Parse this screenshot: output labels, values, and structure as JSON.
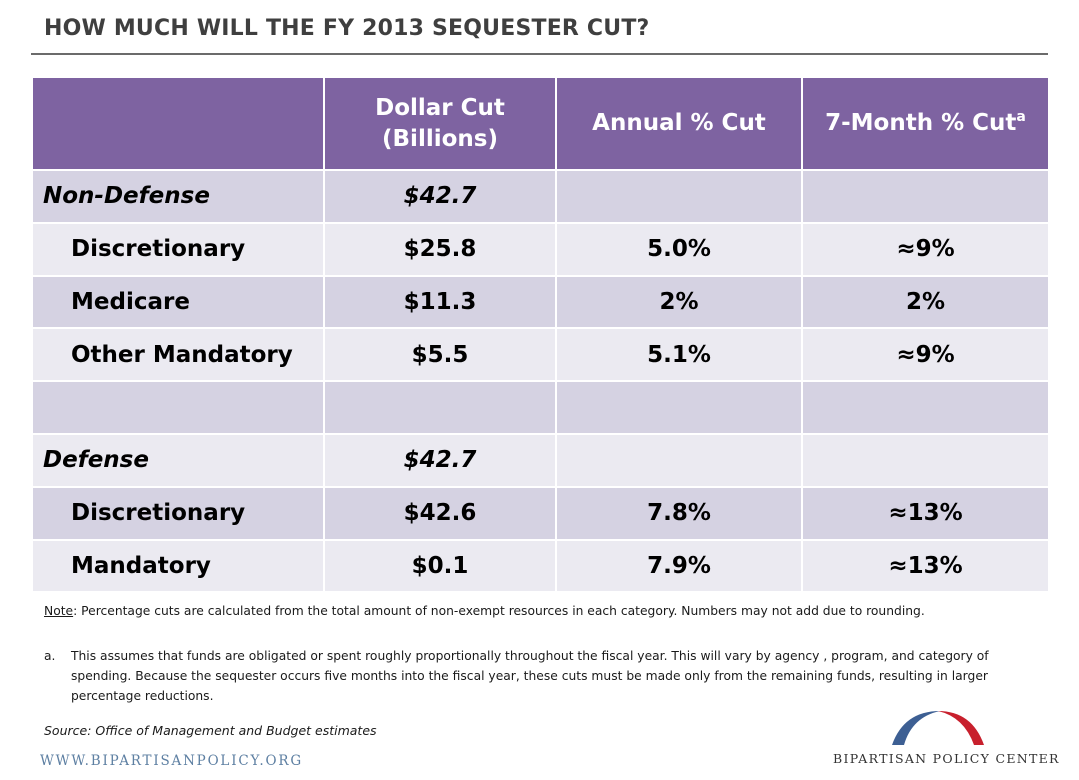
{
  "title": "HOW MUCH WILL THE FY 2013 SEQUESTER CUT?",
  "table": {
    "headers": {
      "col1": "",
      "col2_line1": "Dollar Cut",
      "col2_line2": "(Billions)",
      "col3": "Annual % Cut",
      "col4": "7-Month % Cut",
      "col4_sup": "a"
    },
    "rows": [
      {
        "label": "Non-Defense",
        "dollar": "$42.7",
        "annual": "",
        "seven": ""
      },
      {
        "label": "Discretionary",
        "dollar": "$25.8",
        "annual": "5.0%",
        "seven": "≈9%"
      },
      {
        "label": "Medicare",
        "dollar": "$11.3",
        "annual": "2%",
        "seven": "2%"
      },
      {
        "label": "Other Mandatory",
        "dollar": "$5.5",
        "annual": "5.1%",
        "seven": "≈9%"
      },
      {
        "label": "",
        "dollar": "",
        "annual": "",
        "seven": ""
      },
      {
        "label": "Defense",
        "dollar": "$42.7",
        "annual": "",
        "seven": ""
      },
      {
        "label": "Discretionary",
        "dollar": "$42.6",
        "annual": "7.8%",
        "seven": "≈13%"
      },
      {
        "label": "Mandatory",
        "dollar": "$0.1",
        "annual": "7.9%",
        "seven": "≈13%"
      }
    ]
  },
  "note": {
    "label": "Note",
    "text": ": Percentage cuts are calculated from the total amount of non-exempt  resources in each category. Numbers may not add due to rounding."
  },
  "footnote": {
    "marker": "a.",
    "text": "This assumes that funds are obligated or spent roughly proportionally throughout  the fiscal year. This will vary by agency , program, and category of spending.  Because the sequester  occurs five months into the fiscal year, these cuts must be made only from the remaining funds, resulting in larger percentage reductions."
  },
  "source": "Source: Office of Management and Budget estimates",
  "website": "WWW.BIPARTISANPOLICY.ORG",
  "logo": {
    "name": "BIPARTISAN POLICY CENTER",
    "colors": {
      "left_arc": "#3d5f93",
      "right_arc": "#c8202d"
    }
  },
  "colors": {
    "header_bg": "#7e63a1",
    "row_dark": "#d5d2e2",
    "row_light": "#ebeaf1",
    "title": "#3f3f3f"
  }
}
